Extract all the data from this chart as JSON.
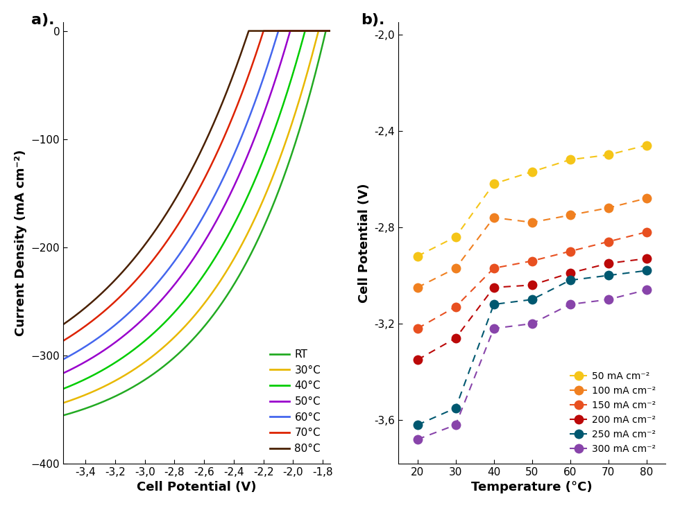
{
  "panel_a": {
    "xlabel": "Cell Potential (V)",
    "ylabel": "Current Density (mA cm⁻²)",
    "xlim": [
      -3.55,
      -1.75
    ],
    "ylim": [
      -400,
      8
    ],
    "curve_params": [
      {
        "label": "RT",
        "color": "#22aa22",
        "V0": -1.78,
        "alpha": 1.55,
        "jL": 380
      },
      {
        "label": "30°C",
        "color": "#e8b800",
        "V0": -1.83,
        "alpha": 1.45,
        "jL": 375
      },
      {
        "label": "40°C",
        "color": "#00cc00",
        "V0": -1.92,
        "alpha": 1.38,
        "jL": 370
      },
      {
        "label": "50°C",
        "color": "#9900cc",
        "V0": -2.02,
        "alpha": 1.32,
        "jL": 365
      },
      {
        "label": "60°C",
        "color": "#4466ee",
        "V0": -2.1,
        "alpha": 1.28,
        "jL": 360
      },
      {
        "label": "70°C",
        "color": "#dd2200",
        "V0": -2.2,
        "alpha": 1.22,
        "jL": 355
      },
      {
        "label": "80°C",
        "color": "#4a2000",
        "V0": -2.3,
        "alpha": 1.18,
        "jL": 352
      }
    ],
    "xticks": [
      -3.4,
      -3.2,
      -3.0,
      -2.8,
      -2.6,
      -2.4,
      -2.2,
      -2.0,
      -1.8
    ],
    "yticks": [
      0,
      -100,
      -200,
      -300,
      -400
    ]
  },
  "panel_b": {
    "xlabel": "Temperature (°C)",
    "ylabel": "Cell Potential (V)",
    "xlim": [
      15,
      85
    ],
    "ylim": [
      -3.78,
      -1.95
    ],
    "temperatures": [
      20,
      30,
      40,
      50,
      60,
      70,
      80
    ],
    "series": [
      {
        "label": "50 mA cm⁻²",
        "color": "#f5c518",
        "values": [
          -2.92,
          -2.84,
          -2.62,
          -2.57,
          -2.52,
          -2.5,
          -2.46
        ]
      },
      {
        "label": "100 mA cm⁻²",
        "color": "#f08020",
        "values": [
          -3.05,
          -2.97,
          -2.76,
          -2.78,
          -2.75,
          -2.72,
          -2.68
        ]
      },
      {
        "label": "150 mA cm⁻²",
        "color": "#e85020",
        "values": [
          -3.22,
          -3.13,
          -2.97,
          -2.94,
          -2.9,
          -2.86,
          -2.82
        ]
      },
      {
        "label": "200 mA cm⁻²",
        "color": "#bb0808",
        "values": [
          -3.35,
          -3.26,
          -3.05,
          -3.04,
          -2.99,
          -2.95,
          -2.93
        ]
      },
      {
        "label": "250 mA cm⁻²",
        "color": "#005870",
        "values": [
          -3.62,
          -3.55,
          -3.12,
          -3.1,
          -3.02,
          -3.0,
          -2.98
        ]
      },
      {
        "label": "300 mA cm⁻²",
        "color": "#8844aa",
        "values": [
          -3.68,
          -3.62,
          -3.22,
          -3.2,
          -3.12,
          -3.1,
          -3.06
        ]
      }
    ],
    "xticks": [
      20,
      30,
      40,
      50,
      60,
      70,
      80
    ],
    "yticks": [
      -2.0,
      -2.4,
      -2.8,
      -3.2,
      -3.6
    ]
  }
}
